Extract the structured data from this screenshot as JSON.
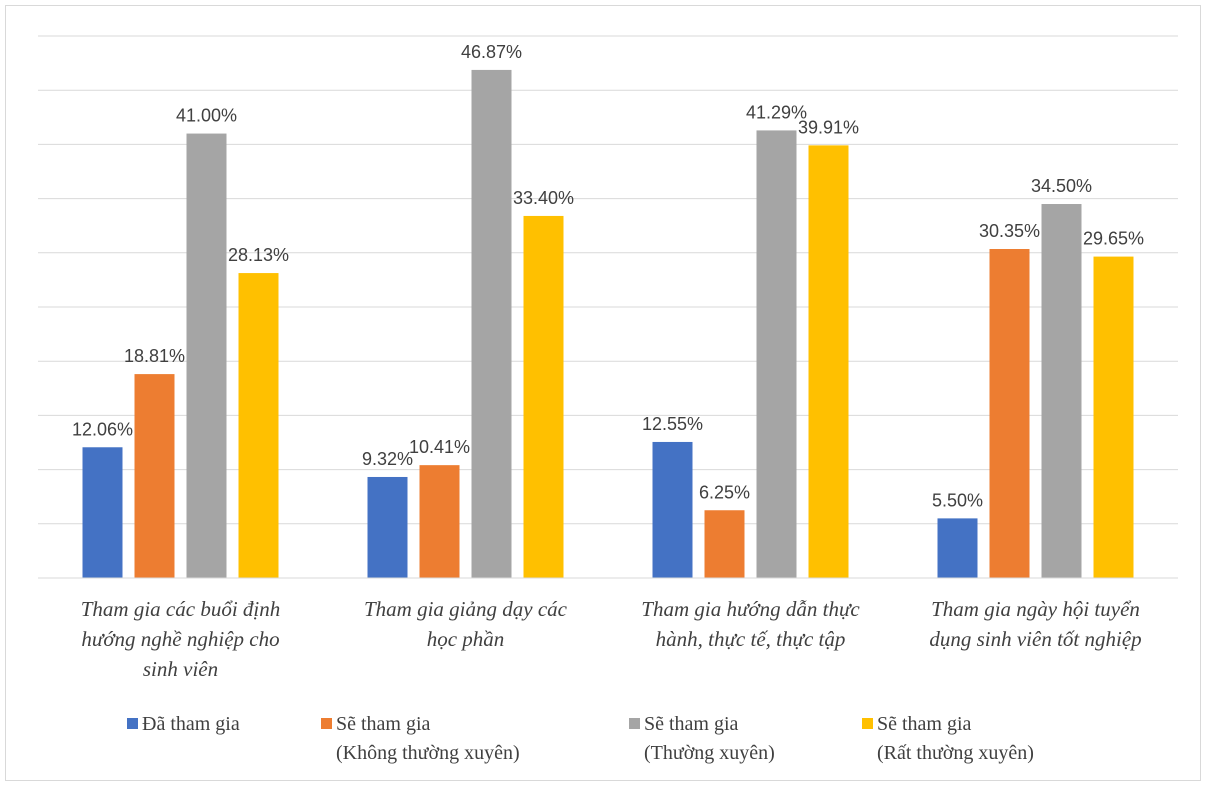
{
  "chart_data": {
    "type": "bar",
    "title": "",
    "xlabel": "",
    "ylabel": "",
    "ylim": [
      0,
      50
    ],
    "grid": true,
    "legend_position": "bottom",
    "categories": [
      [
        "Tham gia các buổi định",
        "hướng nghề nghiệp cho",
        "sinh viên"
      ],
      [
        "Tham gia giảng dạy các",
        "học phần"
      ],
      [
        "Tham gia hướng dẫn thực",
        "hành, thực tế, thực tập"
      ],
      [
        "Tham gia ngày hội tuyển",
        "dụng sinh viên tốt nghiệp"
      ]
    ],
    "series": [
      {
        "name": [
          "Đã tham gia"
        ],
        "color": "#4472C4",
        "values": [
          12.06,
          9.32,
          12.55,
          5.5
        ],
        "labels": [
          "12.06%",
          "9.32%",
          "12.55%",
          "5.50%"
        ]
      },
      {
        "name": [
          "Sẽ tham gia",
          "(Không thường xuyên)"
        ],
        "color": "#ED7D31",
        "values": [
          18.81,
          10.41,
          6.25,
          30.35
        ],
        "labels": [
          "18.81%",
          "10.41%",
          "6.25%",
          "30.35%"
        ]
      },
      {
        "name": [
          "Sẽ tham gia",
          "(Thường xuyên)"
        ],
        "color": "#A5A5A5",
        "values": [
          41.0,
          46.87,
          41.29,
          34.5
        ],
        "labels": [
          "41.00%",
          "46.87%",
          "41.29%",
          "34.50%"
        ]
      },
      {
        "name": [
          "Sẽ tham gia",
          "(Rất thường xuyên)"
        ],
        "color": "#FFC000",
        "values": [
          28.13,
          33.4,
          39.91,
          29.65
        ],
        "labels": [
          "28.13%",
          "33.40%",
          "39.91%",
          "29.65%"
        ]
      }
    ]
  }
}
